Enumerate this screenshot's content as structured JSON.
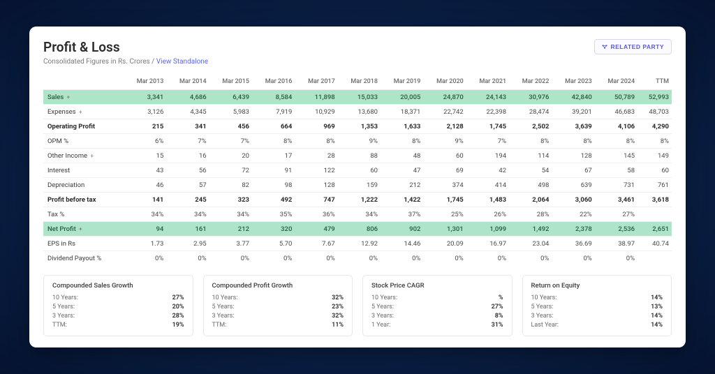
{
  "page": {
    "title": "Profit & Loss",
    "subtitle_prefix": "Consolidated Figures in Rs. Crores / ",
    "subtitle_link": "View Standalone",
    "related_party_label": "RELATED PARTY"
  },
  "colors": {
    "page_bg_outer": "#0a1f44",
    "page_bg_inner": "#1a3a6e",
    "card_bg": "#ffffff",
    "highlight_row_bg": "#aee5c8",
    "highlight_row_text": "#2a5a3f",
    "link_color": "#5b6bd6",
    "button_border": "#d4d9f2",
    "button_text": "#5b5bd6",
    "grid_border": "#f0f0f2",
    "header_text": "#6a6a6a",
    "body_text": "#4a4a4a",
    "bold_text": "#2a2a2a"
  },
  "typography": {
    "title_fontsize_pt": 19,
    "subtitle_fontsize_pt": 10,
    "table_fontsize_pt": 9.5,
    "header_fontsize_pt": 9,
    "summary_fontsize_pt": 9
  },
  "table": {
    "columns": [
      "",
      "Mar 2013",
      "Mar 2014",
      "Mar 2015",
      "Mar 2016",
      "Mar 2017",
      "Mar 2018",
      "Mar 2019",
      "Mar 2020",
      "Mar 2021",
      "Mar 2022",
      "Mar 2023",
      "Mar 2024",
      "TTM"
    ],
    "rows": [
      {
        "label": "Sales",
        "expandable": true,
        "highlight": true,
        "bold": false,
        "values": [
          "3,341",
          "4,686",
          "6,439",
          "8,584",
          "11,898",
          "15,033",
          "20,005",
          "24,870",
          "24,143",
          "30,976",
          "42,840",
          "50,789",
          "52,993"
        ]
      },
      {
        "label": "Expenses",
        "expandable": true,
        "highlight": false,
        "bold": false,
        "values": [
          "3,126",
          "4,345",
          "5,983",
          "7,919",
          "10,929",
          "13,680",
          "18,371",
          "22,742",
          "22,398",
          "28,474",
          "39,201",
          "46,683",
          "48,703"
        ]
      },
      {
        "label": "Operating Profit",
        "expandable": false,
        "highlight": false,
        "bold": true,
        "values": [
          "215",
          "341",
          "456",
          "664",
          "969",
          "1,353",
          "1,633",
          "2,128",
          "1,745",
          "2,502",
          "3,639",
          "4,106",
          "4,290"
        ]
      },
      {
        "label": "OPM %",
        "expandable": false,
        "highlight": false,
        "bold": false,
        "values": [
          "6%",
          "7%",
          "7%",
          "8%",
          "8%",
          "9%",
          "8%",
          "9%",
          "7%",
          "8%",
          "8%",
          "8%",
          "8%"
        ]
      },
      {
        "label": "Other Income",
        "expandable": true,
        "highlight": false,
        "bold": false,
        "values": [
          "15",
          "16",
          "20",
          "17",
          "28",
          "88",
          "48",
          "60",
          "194",
          "114",
          "128",
          "145",
          "149"
        ]
      },
      {
        "label": "Interest",
        "expandable": false,
        "highlight": false,
        "bold": false,
        "values": [
          "43",
          "56",
          "72",
          "91",
          "122",
          "60",
          "47",
          "69",
          "42",
          "54",
          "67",
          "58",
          "60"
        ]
      },
      {
        "label": "Depreciation",
        "expandable": false,
        "highlight": false,
        "bold": false,
        "values": [
          "46",
          "57",
          "82",
          "98",
          "128",
          "159",
          "212",
          "374",
          "414",
          "498",
          "639",
          "731",
          "761"
        ]
      },
      {
        "label": "Profit before tax",
        "expandable": false,
        "highlight": false,
        "bold": true,
        "values": [
          "141",
          "245",
          "323",
          "492",
          "747",
          "1,222",
          "1,422",
          "1,745",
          "1,483",
          "2,064",
          "3,060",
          "3,461",
          "3,618"
        ]
      },
      {
        "label": "Tax %",
        "expandable": false,
        "highlight": false,
        "bold": false,
        "values": [
          "34%",
          "34%",
          "34%",
          "35%",
          "36%",
          "34%",
          "37%",
          "25%",
          "26%",
          "28%",
          "22%",
          "27%",
          ""
        ]
      },
      {
        "label": "Net Profit",
        "expandable": true,
        "highlight": true,
        "bold": false,
        "values": [
          "94",
          "161",
          "212",
          "320",
          "479",
          "806",
          "902",
          "1,301",
          "1,099",
          "1,492",
          "2,378",
          "2,536",
          "2,651"
        ]
      },
      {
        "label": "EPS in Rs",
        "expandable": false,
        "highlight": false,
        "bold": false,
        "values": [
          "1.73",
          "2.95",
          "3.77",
          "5.70",
          "7.67",
          "12.92",
          "14.46",
          "20.09",
          "16.97",
          "23.04",
          "36.69",
          "38.97",
          "40.74"
        ]
      },
      {
        "label": "Dividend Payout %",
        "expandable": false,
        "highlight": false,
        "bold": false,
        "values": [
          "0%",
          "0%",
          "0%",
          "0%",
          "0%",
          "0%",
          "0%",
          "0%",
          "0%",
          "0%",
          "0%",
          "0%",
          ""
        ]
      }
    ]
  },
  "summary_boxes": [
    {
      "title": "Compounded Sales Growth",
      "rows": [
        {
          "label": "10 Years:",
          "value": "27%"
        },
        {
          "label": "5 Years:",
          "value": "20%"
        },
        {
          "label": "3 Years:",
          "value": "28%"
        },
        {
          "label": "TTM:",
          "value": "19%"
        }
      ]
    },
    {
      "title": "Compounded Profit Growth",
      "rows": [
        {
          "label": "10 Years:",
          "value": "32%"
        },
        {
          "label": "5 Years:",
          "value": "23%"
        },
        {
          "label": "3 Years:",
          "value": "32%"
        },
        {
          "label": "TTM:",
          "value": "11%"
        }
      ]
    },
    {
      "title": "Stock Price CAGR",
      "rows": [
        {
          "label": "10 Years:",
          "value": "%"
        },
        {
          "label": "5 Years:",
          "value": "27%"
        },
        {
          "label": "3 Years:",
          "value": "8%"
        },
        {
          "label": "1 Year:",
          "value": "31%"
        }
      ]
    },
    {
      "title": "Return on Equity",
      "rows": [
        {
          "label": "10 Years:",
          "value": "14%"
        },
        {
          "label": "5 Years:",
          "value": "13%"
        },
        {
          "label": "3 Years:",
          "value": "14%"
        },
        {
          "label": "Last Year:",
          "value": "14%"
        }
      ]
    }
  ]
}
